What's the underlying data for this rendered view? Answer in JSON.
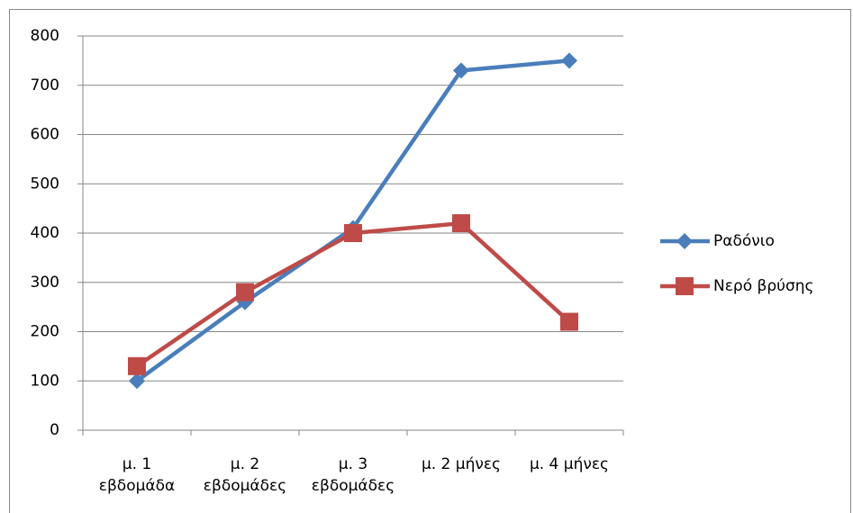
{
  "chart_data": {
    "type": "line",
    "categories": [
      "μ. 1\nεβδομάδα",
      "μ. 2\nεβδομάδες",
      "μ. 3\nεβδομάδες",
      "μ. 2 μήνες",
      "μ. 4 μήνες"
    ],
    "series": [
      {
        "name": "Ραδόνιο",
        "color": "#4a7ebb",
        "marker": "diamond",
        "values": [
          100,
          260,
          410,
          730,
          750
        ]
      },
      {
        "name": "Νερό βρύσης",
        "color": "#be4b48",
        "marker": "square",
        "values": [
          130,
          280,
          400,
          420,
          220
        ]
      }
    ],
    "ylim": [
      0,
      800
    ],
    "yticks": [
      0,
      100,
      200,
      300,
      400,
      500,
      600,
      700,
      800
    ],
    "grid": true,
    "legend": "right"
  }
}
